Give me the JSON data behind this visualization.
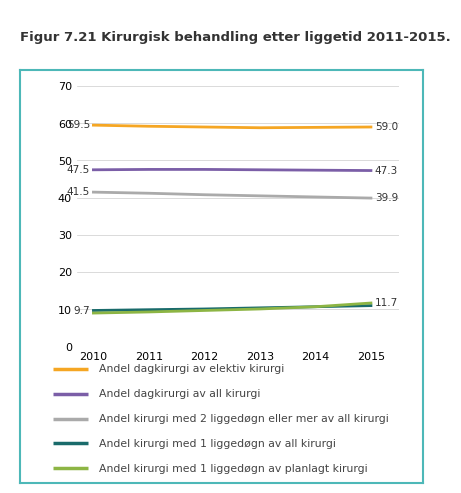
{
  "title": "Figur 7.21 Kirurgisk behandling etter liggetid 2011-2015.",
  "years": [
    2010,
    2011,
    2012,
    2013,
    2014,
    2015
  ],
  "series": [
    {
      "label": "Andel dagkirurgi av elektiv kirurgi",
      "color": "#f5a623",
      "values": [
        59.5,
        59.2,
        59.0,
        58.8,
        58.9,
        59.0
      ],
      "start_label": "59.5",
      "end_label": "59.0"
    },
    {
      "label": "Andel dagkirurgi av all kirurgi",
      "color": "#7b5ea7",
      "values": [
        47.5,
        47.6,
        47.6,
        47.5,
        47.4,
        47.3
      ],
      "start_label": "47.5",
      "end_label": "47.3"
    },
    {
      "label": "Andel kirurgi med 2 liggedøgn eller mer av all kirurgi",
      "color": "#aaaaaa",
      "values": [
        41.5,
        41.2,
        40.8,
        40.5,
        40.2,
        39.9
      ],
      "start_label": "41.5",
      "end_label": "39.9"
    },
    {
      "label": "Andel kirurgi med 1 liggedøgn av all kirurgi",
      "color": "#1a6b6b",
      "values": [
        9.7,
        9.9,
        10.1,
        10.4,
        10.7,
        11.0
      ],
      "start_label": "9.7",
      "end_label": null
    },
    {
      "label": "Andel kirurgi med 1 liggedøgn av planlagt kirurgi",
      "color": "#8db544",
      "values": [
        9.0,
        9.3,
        9.7,
        10.1,
        10.7,
        11.7
      ],
      "start_label": null,
      "end_label": "11.7"
    }
  ],
  "ylim": [
    0,
    70
  ],
  "yticks": [
    0,
    10,
    20,
    30,
    40,
    50,
    60,
    70
  ],
  "xlim": [
    2009.7,
    2015.5
  ],
  "title_fontsize": 9.5,
  "tick_fontsize": 8,
  "legend_fontsize": 7.8,
  "label_fontsize": 7.5,
  "background_color": "#ffffff",
  "title_bg_color": "#d9d9d9",
  "border_color": "#4db8b8",
  "linewidth": 2.0,
  "grid_color": "#cccccc"
}
